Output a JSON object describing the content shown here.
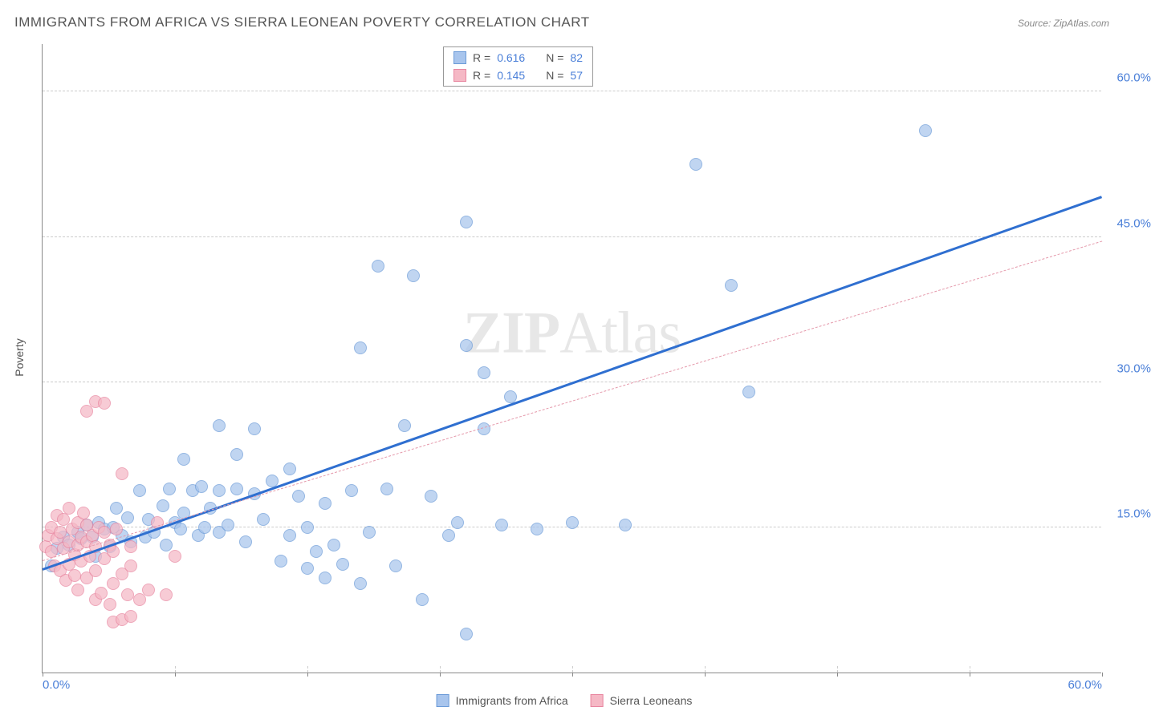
{
  "title": "IMMIGRANTS FROM AFRICA VS SIERRA LEONEAN POVERTY CORRELATION CHART",
  "source_label": "Source:",
  "source_value": "ZipAtlas.com",
  "watermark_a": "ZIP",
  "watermark_b": "Atlas",
  "y_axis_label": "Poverty",
  "chart": {
    "type": "scatter",
    "xlim": [
      0,
      60
    ],
    "ylim": [
      0,
      65
    ],
    "x_ticks": [
      0,
      7.5,
      15,
      22.5,
      30,
      37.5,
      45,
      52.5,
      60
    ],
    "x_tick_labels": [
      "0.0%",
      "",
      "",
      "",
      "",
      "",
      "",
      "",
      "60.0%"
    ],
    "y_gridlines": [
      15,
      30,
      45,
      60
    ],
    "y_tick_labels": [
      "15.0%",
      "30.0%",
      "45.0%",
      "60.0%"
    ],
    "background_color": "#ffffff",
    "grid_color": "#cccccc",
    "axis_color": "#888888",
    "label_color": "#4a7fd8",
    "point_radius": 8,
    "series": [
      {
        "name": "Immigrants from Africa",
        "fill": "#a8c5ed",
        "stroke": "#6b9bd8",
        "opacity": 0.72,
        "r_label": "R =",
        "r_value": "0.616",
        "n_label": "N =",
        "n_value": "82",
        "trend": {
          "x1": 0,
          "y1": 10.5,
          "x2": 60,
          "y2": 49,
          "color": "#2f6fd0",
          "width": 3,
          "dash": "solid"
        },
        "points": [
          [
            0.5,
            11
          ],
          [
            0.8,
            12.8
          ],
          [
            1.2,
            14
          ],
          [
            1.5,
            13.2
          ],
          [
            2,
            14.5
          ],
          [
            2.2,
            13.8
          ],
          [
            2.5,
            15.2
          ],
          [
            2.8,
            14
          ],
          [
            3,
            12
          ],
          [
            3.2,
            15.5
          ],
          [
            3.5,
            14.8
          ],
          [
            3.8,
            13
          ],
          [
            4,
            15
          ],
          [
            4.2,
            17
          ],
          [
            4.5,
            14.2
          ],
          [
            4.8,
            16
          ],
          [
            5,
            13.5
          ],
          [
            5.5,
            18.8
          ],
          [
            5.8,
            14
          ],
          [
            6,
            15.8
          ],
          [
            6.3,
            14.5
          ],
          [
            6.8,
            17.2
          ],
          [
            7,
            13.2
          ],
          [
            7.2,
            19
          ],
          [
            7.5,
            15.5
          ],
          [
            7.8,
            14.8
          ],
          [
            8,
            16.5
          ],
          [
            8,
            22
          ],
          [
            8.5,
            18.8
          ],
          [
            8.8,
            14.2
          ],
          [
            9,
            19.2
          ],
          [
            9.2,
            15
          ],
          [
            9.5,
            17
          ],
          [
            10,
            14.5
          ],
          [
            10,
            18.8
          ],
          [
            10,
            25.5
          ],
          [
            10.5,
            15.2
          ],
          [
            11,
            19
          ],
          [
            11,
            22.5
          ],
          [
            11.5,
            13.5
          ],
          [
            12,
            18.5
          ],
          [
            12,
            25.2
          ],
          [
            12.5,
            15.8
          ],
          [
            13,
            19.8
          ],
          [
            13.5,
            11.5
          ],
          [
            14,
            21
          ],
          [
            14,
            14.2
          ],
          [
            14.5,
            18.2
          ],
          [
            15,
            10.8
          ],
          [
            15,
            15
          ],
          [
            15.5,
            12.5
          ],
          [
            16,
            17.5
          ],
          [
            16,
            9.8
          ],
          [
            16.5,
            13.2
          ],
          [
            17,
            11.2
          ],
          [
            17.5,
            18.8
          ],
          [
            18,
            33.5
          ],
          [
            18,
            9.2
          ],
          [
            18.5,
            14.5
          ],
          [
            19,
            42
          ],
          [
            19.5,
            19
          ],
          [
            20,
            11
          ],
          [
            20.5,
            25.5
          ],
          [
            21,
            41
          ],
          [
            21.5,
            7.5
          ],
          [
            22,
            18.2
          ],
          [
            23,
            14.2
          ],
          [
            23.5,
            15.5
          ],
          [
            24,
            33.8
          ],
          [
            24,
            46.5
          ],
          [
            25,
            31
          ],
          [
            25,
            25.2
          ],
          [
            26,
            15.2
          ],
          [
            26.5,
            28.5
          ],
          [
            28,
            14.8
          ],
          [
            30,
            15.5
          ],
          [
            33,
            15.2
          ],
          [
            37,
            52.5
          ],
          [
            39,
            40
          ],
          [
            40,
            29
          ],
          [
            50,
            56
          ],
          [
            24,
            4
          ]
        ]
      },
      {
        "name": "Sierra Leoneans",
        "fill": "#f5b8c5",
        "stroke": "#e886a0",
        "opacity": 0.72,
        "r_label": "R =",
        "r_value": "0.145",
        "n_label": "N =",
        "n_value": "57",
        "trend": {
          "x1": 0,
          "y1": 11.5,
          "x2": 60,
          "y2": 44.5,
          "color": "#e599ab",
          "width": 1,
          "dash": "dashed"
        },
        "points": [
          [
            0.2,
            13
          ],
          [
            0.3,
            14.2
          ],
          [
            0.5,
            12.5
          ],
          [
            0.5,
            15
          ],
          [
            0.7,
            11
          ],
          [
            0.8,
            13.8
          ],
          [
            0.8,
            16.2
          ],
          [
            1,
            10.5
          ],
          [
            1,
            14.5
          ],
          [
            1.2,
            12.8
          ],
          [
            1.2,
            15.8
          ],
          [
            1.3,
            9.5
          ],
          [
            1.5,
            13.5
          ],
          [
            1.5,
            11.2
          ],
          [
            1.5,
            17
          ],
          [
            1.7,
            14.8
          ],
          [
            1.8,
            10
          ],
          [
            1.8,
            12.2
          ],
          [
            2,
            13.2
          ],
          [
            2,
            15.5
          ],
          [
            2,
            8.5
          ],
          [
            2.2,
            14
          ],
          [
            2.2,
            11.5
          ],
          [
            2.3,
            16.5
          ],
          [
            2.5,
            13.5
          ],
          [
            2.5,
            9.8
          ],
          [
            2.5,
            15.2
          ],
          [
            2.7,
            12
          ],
          [
            2.8,
            14.2
          ],
          [
            3,
            7.5
          ],
          [
            3,
            13
          ],
          [
            3,
            10.5
          ],
          [
            3.2,
            15
          ],
          [
            3.3,
            8.2
          ],
          [
            3.5,
            11.8
          ],
          [
            3.5,
            14.5
          ],
          [
            3.8,
            7
          ],
          [
            3.8,
            13.2
          ],
          [
            4,
            9.2
          ],
          [
            4,
            12.5
          ],
          [
            4,
            5.2
          ],
          [
            4.2,
            14.8
          ],
          [
            4.5,
            10.2
          ],
          [
            4.5,
            5.5
          ],
          [
            4.8,
            8
          ],
          [
            5,
            13
          ],
          [
            2.5,
            27
          ],
          [
            3,
            28
          ],
          [
            3.5,
            27.8
          ],
          [
            4.5,
            20.5
          ],
          [
            5.5,
            7.5
          ],
          [
            5,
            11
          ],
          [
            6,
            8.5
          ],
          [
            6.5,
            15.5
          ],
          [
            7,
            8
          ],
          [
            7.5,
            12
          ],
          [
            5,
            5.8
          ]
        ]
      }
    ]
  }
}
